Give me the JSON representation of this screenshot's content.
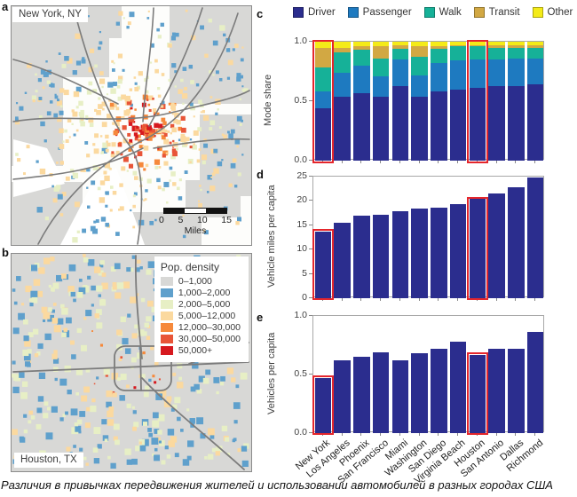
{
  "figure": {
    "caption": "Различия в привычках передвижения жителей и использовании автомобилей в разных городах США"
  },
  "panels": {
    "a": {
      "label": "a",
      "title": "New York, NY",
      "scalebar": {
        "ticks": [
          "0",
          "5",
          "10",
          "15"
        ],
        "unit": "Miles"
      }
    },
    "b": {
      "label": "b",
      "title": "Houston, TX",
      "legend": {
        "title": "Pop. density",
        "items": [
          {
            "label": "0–1,000",
            "color": "#d8d8d6"
          },
          {
            "label": "1,000–2,000",
            "color": "#5fa0cc"
          },
          {
            "label": "2,000–5,000",
            "color": "#e7efc5"
          },
          {
            "label": "5,000–12,000",
            "color": "#fbd99f"
          },
          {
            "label": "12,000–30,000",
            "color": "#f6893b"
          },
          {
            "label": "30,000–50,000",
            "color": "#e85538"
          },
          {
            "label": "50,000+",
            "color": "#d6191f"
          }
        ]
      }
    },
    "c": {
      "label": "c"
    },
    "d": {
      "label": "d"
    },
    "e": {
      "label": "e"
    }
  },
  "map_palette": {
    "gray": "#d8d8d6",
    "blue": "#5fa0cc",
    "pgreen": "#e7efc5",
    "peach": "#fbd99f",
    "orange": "#f6893b",
    "dorange": "#e85538",
    "red": "#d6191f",
    "road": "#7c7c7c",
    "water": "#ffffff"
  },
  "highlight": {
    "color": "#e4262c",
    "indices": [
      0,
      8
    ],
    "cities": [
      "New York",
      "Houston"
    ]
  },
  "chart_data": [
    {
      "id": "c",
      "type": "stacked-bar",
      "ylabel": "Mode share",
      "ylim": [
        0,
        1
      ],
      "yticks": [
        [
          1,
          "1.0"
        ],
        [
          0.5,
          "0.5"
        ],
        [
          0,
          "0.0"
        ]
      ],
      "categories": [
        "New York",
        "Los Angeles",
        "Phoenix",
        "San Francisco",
        "Miami",
        "Washington",
        "San Diego",
        "Virginia Beach",
        "Houston",
        "San Antonio",
        "Dallas",
        "Richmond"
      ],
      "series": [
        {
          "name": "Driver",
          "color": "#2b2d8e",
          "values": [
            0.44,
            0.54,
            0.57,
            0.54,
            0.63,
            0.54,
            0.58,
            0.6,
            0.61,
            0.63,
            0.63,
            0.64
          ]
        },
        {
          "name": "Passenger",
          "color": "#1e7ac0",
          "values": [
            0.14,
            0.2,
            0.23,
            0.17,
            0.22,
            0.18,
            0.24,
            0.24,
            0.24,
            0.22,
            0.23,
            0.22
          ]
        },
        {
          "name": "Walk",
          "color": "#16b198",
          "values": [
            0.2,
            0.17,
            0.13,
            0.15,
            0.09,
            0.15,
            0.12,
            0.12,
            0.11,
            0.1,
            0.09,
            0.09
          ]
        },
        {
          "name": "Transit",
          "color": "#d2a843",
          "values": [
            0.17,
            0.04,
            0.03,
            0.1,
            0.03,
            0.09,
            0.02,
            0.01,
            0.01,
            0.02,
            0.02,
            0.02
          ]
        },
        {
          "name": "Other",
          "color": "#f4eb18",
          "values": [
            0.05,
            0.05,
            0.04,
            0.04,
            0.03,
            0.04,
            0.04,
            0.03,
            0.03,
            0.03,
            0.03,
            0.03
          ]
        }
      ],
      "legend_position": "top"
    },
    {
      "id": "d",
      "type": "bar",
      "ylabel": "Vehicle miles per capita",
      "ylim": [
        0,
        25
      ],
      "yticks": [
        [
          25,
          "25"
        ],
        [
          20,
          "20"
        ],
        [
          15,
          "15"
        ],
        [
          10,
          "10"
        ],
        [
          5,
          "5"
        ],
        [
          0,
          "0"
        ]
      ],
      "categories": [
        "New York",
        "Los Angeles",
        "Phoenix",
        "San Francisco",
        "Miami",
        "Washington",
        "San Diego",
        "Virginia Beach",
        "Houston",
        "San Antonio",
        "Dallas",
        "Richmond"
      ],
      "bar_color": "#2b2d8e",
      "values": [
        13.7,
        15.5,
        16.9,
        17.2,
        17.9,
        18.4,
        18.7,
        19.3,
        20.4,
        21.6,
        22.8,
        24.8
      ]
    },
    {
      "id": "e",
      "type": "bar",
      "ylabel": "Vehicles per capita",
      "ylim": [
        0,
        1
      ],
      "yticks": [
        [
          1,
          "1.0"
        ],
        [
          0.5,
          "0.5"
        ],
        [
          0,
          "0.0"
        ]
      ],
      "categories": [
        "New York",
        "Los Angeles",
        "Phoenix",
        "San Francisco",
        "Miami",
        "Washington",
        "San Diego",
        "Virginia Beach",
        "Houston",
        "San Antonio",
        "Dallas",
        "Richmond"
      ],
      "bar_color": "#2b2d8e",
      "values": [
        0.47,
        0.62,
        0.65,
        0.69,
        0.62,
        0.68,
        0.72,
        0.78,
        0.67,
        0.72,
        0.72,
        0.86
      ]
    }
  ]
}
